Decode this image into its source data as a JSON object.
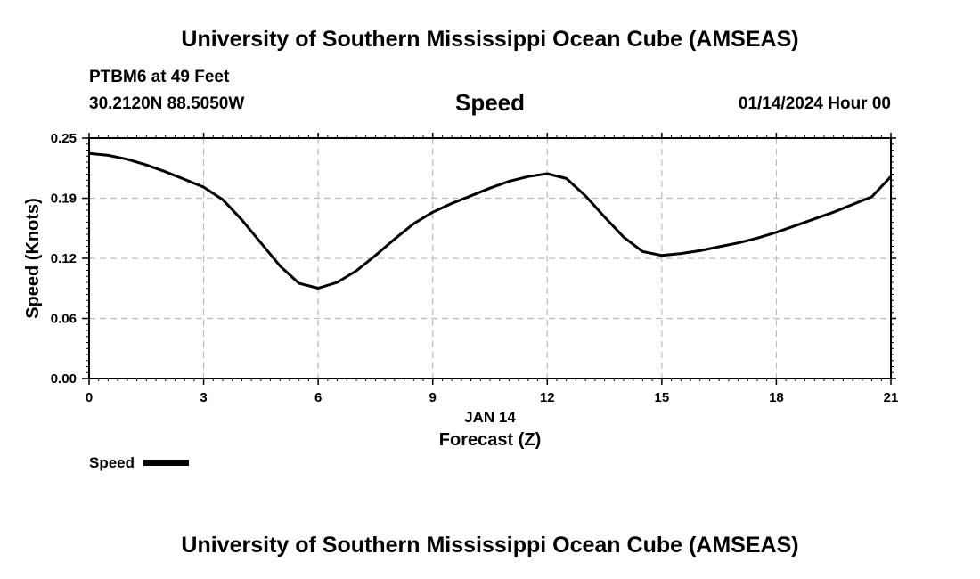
{
  "header": {
    "title": "University of Southern Mississippi Ocean Cube (AMSEAS)",
    "station": "PTBM6 at 49 Feet",
    "coordinates": "30.2120N  88.5050W",
    "variable": "Speed",
    "datetime": "01/14/2024 Hour 00"
  },
  "footer": {
    "title": "University of Southern Mississippi Ocean Cube (AMSEAS)"
  },
  "chart_data": {
    "type": "line",
    "title": "Speed",
    "xlabel": "Forecast (Z)",
    "xlabel_date": "JAN 14",
    "ylabel": "Speed (Knots)",
    "xlim": [
      0,
      21
    ],
    "ylim": [
      0,
      0.25
    ],
    "x_ticks": [
      0,
      3,
      6,
      9,
      12,
      15,
      18,
      21
    ],
    "x_tick_labels": [
      "0",
      "3",
      "6",
      "9",
      "12",
      "15",
      "18",
      "21"
    ],
    "y_ticks": [
      0,
      0.0625,
      0.125,
      0.1875,
      0.25
    ],
    "y_tick_labels": [
      "0.00",
      "0.06",
      "0.12",
      "0.19",
      "0.25"
    ],
    "grid": true,
    "legend": "bottom-left",
    "line_color": "#000000",
    "series": [
      {
        "name": "Speed",
        "x": [
          0,
          0.5,
          1,
          1.5,
          2,
          2.5,
          3,
          3.5,
          4,
          4.5,
          5,
          5.5,
          6,
          6.5,
          7,
          7.5,
          8,
          8.5,
          9,
          9.5,
          10,
          10.5,
          11,
          11.5,
          12,
          12.5,
          13,
          13.5,
          14,
          14.5,
          15,
          15.5,
          16,
          16.5,
          17,
          17.5,
          18,
          18.5,
          19,
          19.5,
          20,
          20.5,
          21
        ],
        "values": [
          0.234,
          0.232,
          0.228,
          0.222,
          0.215,
          0.207,
          0.199,
          0.186,
          0.165,
          0.141,
          0.117,
          0.099,
          0.094,
          0.1,
          0.112,
          0.128,
          0.145,
          0.161,
          0.173,
          0.182,
          0.19,
          0.198,
          0.205,
          0.21,
          0.213,
          0.208,
          0.19,
          0.168,
          0.147,
          0.132,
          0.128,
          0.13,
          0.133,
          0.137,
          0.141,
          0.146,
          0.152,
          0.159,
          0.166,
          0.173,
          0.181,
          0.189,
          0.21
        ]
      }
    ]
  }
}
